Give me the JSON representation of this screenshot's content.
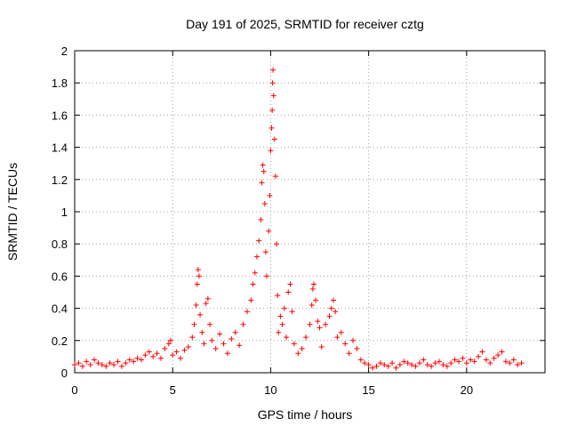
{
  "chart_data": {
    "type": "scatter",
    "title": "Day 191 of 2025, SRMTID for receiver cztg",
    "xlabel": "GPS time / hours",
    "ylabel": "SRMTID / TECUs",
    "xlim": [
      0,
      24
    ],
    "ylim": [
      0,
      2
    ],
    "xticks": [
      0,
      5,
      10,
      15,
      20
    ],
    "xtick_labels": [
      "0",
      "5",
      "10",
      "15",
      "20"
    ],
    "yticks": [
      0,
      0.2,
      0.4,
      0.6,
      0.8,
      1,
      1.2,
      1.4,
      1.6,
      1.8,
      2
    ],
    "ytick_labels": [
      "0",
      "0.2",
      "0.4",
      "0.6",
      "0.8",
      "1",
      "1.2",
      "1.4",
      "1.6",
      "1.8",
      "2"
    ],
    "grid": true,
    "marker": "plus",
    "color": "#ff0000",
    "series": [
      {
        "name": "SRMTID",
        "points": [
          [
            0.0,
            0.05
          ],
          [
            0.2,
            0.06
          ],
          [
            0.4,
            0.04
          ],
          [
            0.6,
            0.07
          ],
          [
            0.8,
            0.05
          ],
          [
            1.0,
            0.08
          ],
          [
            1.2,
            0.06
          ],
          [
            1.4,
            0.05
          ],
          [
            1.6,
            0.04
          ],
          [
            1.8,
            0.06
          ],
          [
            2.0,
            0.05
          ],
          [
            2.2,
            0.07
          ],
          [
            2.4,
            0.04
          ],
          [
            2.6,
            0.06
          ],
          [
            2.8,
            0.08
          ],
          [
            3.0,
            0.07
          ],
          [
            3.2,
            0.09
          ],
          [
            3.4,
            0.08
          ],
          [
            3.6,
            0.11
          ],
          [
            3.8,
            0.13
          ],
          [
            4.0,
            0.1
          ],
          [
            4.2,
            0.12
          ],
          [
            4.4,
            0.09
          ],
          [
            4.6,
            0.15
          ],
          [
            4.8,
            0.18
          ],
          [
            4.9,
            0.2
          ],
          [
            5.0,
            0.11
          ],
          [
            5.2,
            0.13
          ],
          [
            5.4,
            0.09
          ],
          [
            5.6,
            0.14
          ],
          [
            5.8,
            0.16
          ],
          [
            6.0,
            0.22
          ],
          [
            6.1,
            0.3
          ],
          [
            6.2,
            0.42
          ],
          [
            6.25,
            0.55
          ],
          [
            6.3,
            0.64
          ],
          [
            6.35,
            0.6
          ],
          [
            6.4,
            0.36
          ],
          [
            6.5,
            0.25
          ],
          [
            6.6,
            0.18
          ],
          [
            6.7,
            0.43
          ],
          [
            6.8,
            0.46
          ],
          [
            6.9,
            0.3
          ],
          [
            7.0,
            0.2
          ],
          [
            7.2,
            0.15
          ],
          [
            7.4,
            0.24
          ],
          [
            7.6,
            0.18
          ],
          [
            7.8,
            0.12
          ],
          [
            8.0,
            0.21
          ],
          [
            8.2,
            0.25
          ],
          [
            8.4,
            0.17
          ],
          [
            8.6,
            0.3
          ],
          [
            8.8,
            0.38
          ],
          [
            9.0,
            0.45
          ],
          [
            9.1,
            0.55
          ],
          [
            9.2,
            0.62
          ],
          [
            9.3,
            0.72
          ],
          [
            9.4,
            0.82
          ],
          [
            9.5,
            0.95
          ],
          [
            9.55,
            1.18
          ],
          [
            9.6,
            1.29
          ],
          [
            9.65,
            1.25
          ],
          [
            9.7,
            1.05
          ],
          [
            9.75,
            0.75
          ],
          [
            9.8,
            0.6
          ],
          [
            9.9,
            0.88
          ],
          [
            9.95,
            1.1
          ],
          [
            10.0,
            1.38
          ],
          [
            10.05,
            1.52
          ],
          [
            10.08,
            1.63
          ],
          [
            10.1,
            1.8
          ],
          [
            10.12,
            1.88
          ],
          [
            10.15,
            1.72
          ],
          [
            10.2,
            1.45
          ],
          [
            10.25,
            1.22
          ],
          [
            10.3,
            0.8
          ],
          [
            10.35,
            0.48
          ],
          [
            10.4,
            0.25
          ],
          [
            10.5,
            0.35
          ],
          [
            10.6,
            0.3
          ],
          [
            10.7,
            0.4
          ],
          [
            10.8,
            0.22
          ],
          [
            10.9,
            0.5
          ],
          [
            11.0,
            0.55
          ],
          [
            11.1,
            0.38
          ],
          [
            11.2,
            0.18
          ],
          [
            11.4,
            0.12
          ],
          [
            11.6,
            0.15
          ],
          [
            11.8,
            0.22
          ],
          [
            12.0,
            0.3
          ],
          [
            12.1,
            0.42
          ],
          [
            12.15,
            0.52
          ],
          [
            12.2,
            0.55
          ],
          [
            12.3,
            0.45
          ],
          [
            12.4,
            0.32
          ],
          [
            12.5,
            0.28
          ],
          [
            12.6,
            0.16
          ],
          [
            12.8,
            0.3
          ],
          [
            13.0,
            0.35
          ],
          [
            13.1,
            0.4
          ],
          [
            13.2,
            0.45
          ],
          [
            13.3,
            0.38
          ],
          [
            13.4,
            0.22
          ],
          [
            13.6,
            0.25
          ],
          [
            13.8,
            0.18
          ],
          [
            14.0,
            0.12
          ],
          [
            14.2,
            0.2
          ],
          [
            14.4,
            0.15
          ],
          [
            14.6,
            0.08
          ],
          [
            14.8,
            0.06
          ],
          [
            15.0,
            0.05
          ],
          [
            15.2,
            0.03
          ],
          [
            15.4,
            0.04
          ],
          [
            15.6,
            0.06
          ],
          [
            15.8,
            0.05
          ],
          [
            16.0,
            0.04
          ],
          [
            16.2,
            0.06
          ],
          [
            16.4,
            0.03
          ],
          [
            16.6,
            0.05
          ],
          [
            16.8,
            0.07
          ],
          [
            17.0,
            0.06
          ],
          [
            17.2,
            0.05
          ],
          [
            17.4,
            0.04
          ],
          [
            17.6,
            0.06
          ],
          [
            17.8,
            0.08
          ],
          [
            18.0,
            0.05
          ],
          [
            18.2,
            0.04
          ],
          [
            18.4,
            0.06
          ],
          [
            18.6,
            0.07
          ],
          [
            18.8,
            0.05
          ],
          [
            19.0,
            0.04
          ],
          [
            19.2,
            0.06
          ],
          [
            19.4,
            0.08
          ],
          [
            19.6,
            0.07
          ],
          [
            19.8,
            0.09
          ],
          [
            20.0,
            0.06
          ],
          [
            20.2,
            0.08
          ],
          [
            20.4,
            0.07
          ],
          [
            20.6,
            0.1
          ],
          [
            20.8,
            0.13
          ],
          [
            21.0,
            0.08
          ],
          [
            21.2,
            0.06
          ],
          [
            21.4,
            0.09
          ],
          [
            21.6,
            0.11
          ],
          [
            21.8,
            0.13
          ],
          [
            22.0,
            0.07
          ],
          [
            22.2,
            0.06
          ],
          [
            22.4,
            0.08
          ],
          [
            22.6,
            0.05
          ],
          [
            22.8,
            0.06
          ]
        ]
      }
    ]
  }
}
